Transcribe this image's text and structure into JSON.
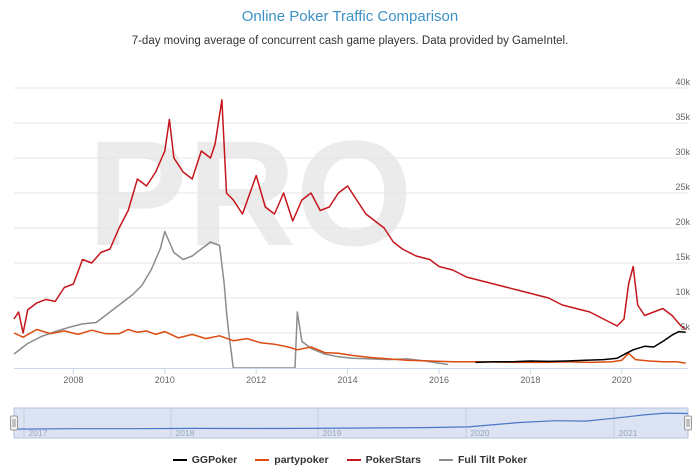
{
  "chart_data": {
    "type": "line",
    "title": "Online Poker Traffic Comparison",
    "subtitle": "7-day moving average of concurrent cash game players. Data provided by GameIntel.",
    "xlabel": "",
    "ylabel": "",
    "x_ticks": [
      "2008",
      "2010",
      "2012",
      "2014",
      "2016",
      "2018",
      "2020"
    ],
    "y_ticks": [
      "5k",
      "10k",
      "15k",
      "20k",
      "25k",
      "30k",
      "35k",
      "40k"
    ],
    "xlim": [
      2006.7,
      2021.45
    ],
    "ylim": [
      0,
      40000
    ],
    "grid": "horizontal",
    "legend_position": "bottom",
    "watermark": "PRO",
    "series": [
      {
        "name": "GGPoker",
        "color": "#000000",
        "points": [
          [
            2016.8,
            800
          ],
          [
            2017.2,
            900
          ],
          [
            2017.6,
            900
          ],
          [
            2018.0,
            1000
          ],
          [
            2018.4,
            950
          ],
          [
            2018.8,
            1000
          ],
          [
            2019.2,
            1100
          ],
          [
            2019.6,
            1200
          ],
          [
            2019.9,
            1400
          ],
          [
            2020.1,
            2100
          ],
          [
            2020.25,
            2600
          ],
          [
            2020.5,
            3100
          ],
          [
            2020.7,
            3000
          ],
          [
            2020.9,
            3800
          ],
          [
            2021.1,
            4700
          ],
          [
            2021.25,
            5200
          ],
          [
            2021.4,
            5100
          ]
        ]
      },
      {
        "name": "partypoker",
        "color": "#dd4b0f",
        "points": [
          [
            2006.7,
            5000
          ],
          [
            2006.9,
            4400
          ],
          [
            2007.2,
            5500
          ],
          [
            2007.5,
            4900
          ],
          [
            2007.8,
            5300
          ],
          [
            2008.1,
            4800
          ],
          [
            2008.4,
            5400
          ],
          [
            2008.7,
            4900
          ],
          [
            2009.0,
            4900
          ],
          [
            2009.2,
            5500
          ],
          [
            2009.4,
            5100
          ],
          [
            2009.6,
            5300
          ],
          [
            2009.8,
            4800
          ],
          [
            2010.0,
            5200
          ],
          [
            2010.3,
            4300
          ],
          [
            2010.6,
            4800
          ],
          [
            2010.9,
            4200
          ],
          [
            2011.2,
            4600
          ],
          [
            2011.5,
            3900
          ],
          [
            2011.8,
            4200
          ],
          [
            2012.1,
            3600
          ],
          [
            2012.4,
            3400
          ],
          [
            2012.7,
            3000
          ],
          [
            2012.9,
            2600
          ],
          [
            2013.2,
            3000
          ],
          [
            2013.5,
            2200
          ],
          [
            2013.8,
            2100
          ],
          [
            2014.1,
            1800
          ],
          [
            2014.5,
            1500
          ],
          [
            2014.9,
            1300
          ],
          [
            2015.3,
            1100
          ],
          [
            2015.8,
            1000
          ],
          [
            2016.3,
            900
          ],
          [
            2016.8,
            900
          ],
          [
            2017.3,
            850
          ],
          [
            2017.8,
            800
          ],
          [
            2018.3,
            800
          ],
          [
            2018.8,
            900
          ],
          [
            2019.3,
            800
          ],
          [
            2019.8,
            900
          ],
          [
            2020.0,
            1100
          ],
          [
            2020.15,
            2100
          ],
          [
            2020.3,
            1200
          ],
          [
            2020.6,
            1000
          ],
          [
            2020.9,
            900
          ],
          [
            2021.2,
            900
          ],
          [
            2021.4,
            700
          ]
        ]
      },
      {
        "name": "PokerStars",
        "color": "#c4161c",
        "points": [
          [
            2006.7,
            7000
          ],
          [
            2006.8,
            8000
          ],
          [
            2006.9,
            5000
          ],
          [
            2007.0,
            8300
          ],
          [
            2007.2,
            9300
          ],
          [
            2007.4,
            9800
          ],
          [
            2007.6,
            9500
          ],
          [
            2007.8,
            11500
          ],
          [
            2008.0,
            12000
          ],
          [
            2008.2,
            15500
          ],
          [
            2008.4,
            15000
          ],
          [
            2008.6,
            16500
          ],
          [
            2008.8,
            17000
          ],
          [
            2009.0,
            20000
          ],
          [
            2009.2,
            22500
          ],
          [
            2009.4,
            27000
          ],
          [
            2009.6,
            26000
          ],
          [
            2009.8,
            28000
          ],
          [
            2010.0,
            31000
          ],
          [
            2010.1,
            35500
          ],
          [
            2010.2,
            30000
          ],
          [
            2010.4,
            28000
          ],
          [
            2010.6,
            27000
          ],
          [
            2010.8,
            31000
          ],
          [
            2011.0,
            30000
          ],
          [
            2011.1,
            32000
          ],
          [
            2011.25,
            38300
          ],
          [
            2011.35,
            25000
          ],
          [
            2011.5,
            24000
          ],
          [
            2011.7,
            22000
          ],
          [
            2012.0,
            27500
          ],
          [
            2012.2,
            23000
          ],
          [
            2012.4,
            22000
          ],
          [
            2012.6,
            25000
          ],
          [
            2012.8,
            21000
          ],
          [
            2013.0,
            24000
          ],
          [
            2013.2,
            25000
          ],
          [
            2013.4,
            22500
          ],
          [
            2013.6,
            23000
          ],
          [
            2013.8,
            25000
          ],
          [
            2014.0,
            26000
          ],
          [
            2014.2,
            24000
          ],
          [
            2014.4,
            22000
          ],
          [
            2014.6,
            21000
          ],
          [
            2014.8,
            20000
          ],
          [
            2015.0,
            18000
          ],
          [
            2015.2,
            17000
          ],
          [
            2015.5,
            16000
          ],
          [
            2015.8,
            15500
          ],
          [
            2016.0,
            14500
          ],
          [
            2016.3,
            14000
          ],
          [
            2016.6,
            13000
          ],
          [
            2016.9,
            12500
          ],
          [
            2017.2,
            12000
          ],
          [
            2017.5,
            11500
          ],
          [
            2017.8,
            11000
          ],
          [
            2018.1,
            10500
          ],
          [
            2018.4,
            10000
          ],
          [
            2018.7,
            9000
          ],
          [
            2019.0,
            8500
          ],
          [
            2019.3,
            8000
          ],
          [
            2019.6,
            7000
          ],
          [
            2019.9,
            6000
          ],
          [
            2020.05,
            7000
          ],
          [
            2020.15,
            12000
          ],
          [
            2020.25,
            14500
          ],
          [
            2020.35,
            9000
          ],
          [
            2020.5,
            7500
          ],
          [
            2020.7,
            8000
          ],
          [
            2020.9,
            8500
          ],
          [
            2021.1,
            7500
          ],
          [
            2021.3,
            6000
          ],
          [
            2021.4,
            5500
          ]
        ]
      },
      {
        "name": "Full Tilt Poker",
        "color": "#8c8c8c",
        "points": [
          [
            2006.7,
            2000
          ],
          [
            2007.0,
            3500
          ],
          [
            2007.3,
            4500
          ],
          [
            2007.6,
            5200
          ],
          [
            2007.9,
            5800
          ],
          [
            2008.2,
            6300
          ],
          [
            2008.5,
            6500
          ],
          [
            2008.7,
            7500
          ],
          [
            2008.9,
            8500
          ],
          [
            2009.1,
            9500
          ],
          [
            2009.3,
            10500
          ],
          [
            2009.5,
            11800
          ],
          [
            2009.7,
            14000
          ],
          [
            2009.9,
            17000
          ],
          [
            2010.0,
            19500
          ],
          [
            2010.2,
            16500
          ],
          [
            2010.4,
            15500
          ],
          [
            2010.6,
            16000
          ],
          [
            2010.8,
            17000
          ],
          [
            2011.0,
            18000
          ],
          [
            2011.2,
            17500
          ],
          [
            2011.3,
            12000
          ],
          [
            2011.35,
            8000
          ],
          [
            2011.4,
            5000
          ],
          [
            2011.5,
            0
          ],
          [
            2012.85,
            0
          ],
          [
            2012.9,
            8000
          ],
          [
            2013.0,
            3800
          ],
          [
            2013.2,
            2800
          ],
          [
            2013.5,
            2000
          ],
          [
            2013.8,
            1600
          ],
          [
            2014.1,
            1400
          ],
          [
            2014.5,
            1300
          ],
          [
            2014.9,
            1200
          ],
          [
            2015.3,
            1300
          ],
          [
            2015.7,
            1000
          ],
          [
            2016.0,
            700
          ],
          [
            2016.2,
            500
          ]
        ]
      }
    ],
    "navigator": {
      "labels": [
        "2017",
        "2018",
        "2019",
        "2020",
        "2021"
      ]
    }
  }
}
